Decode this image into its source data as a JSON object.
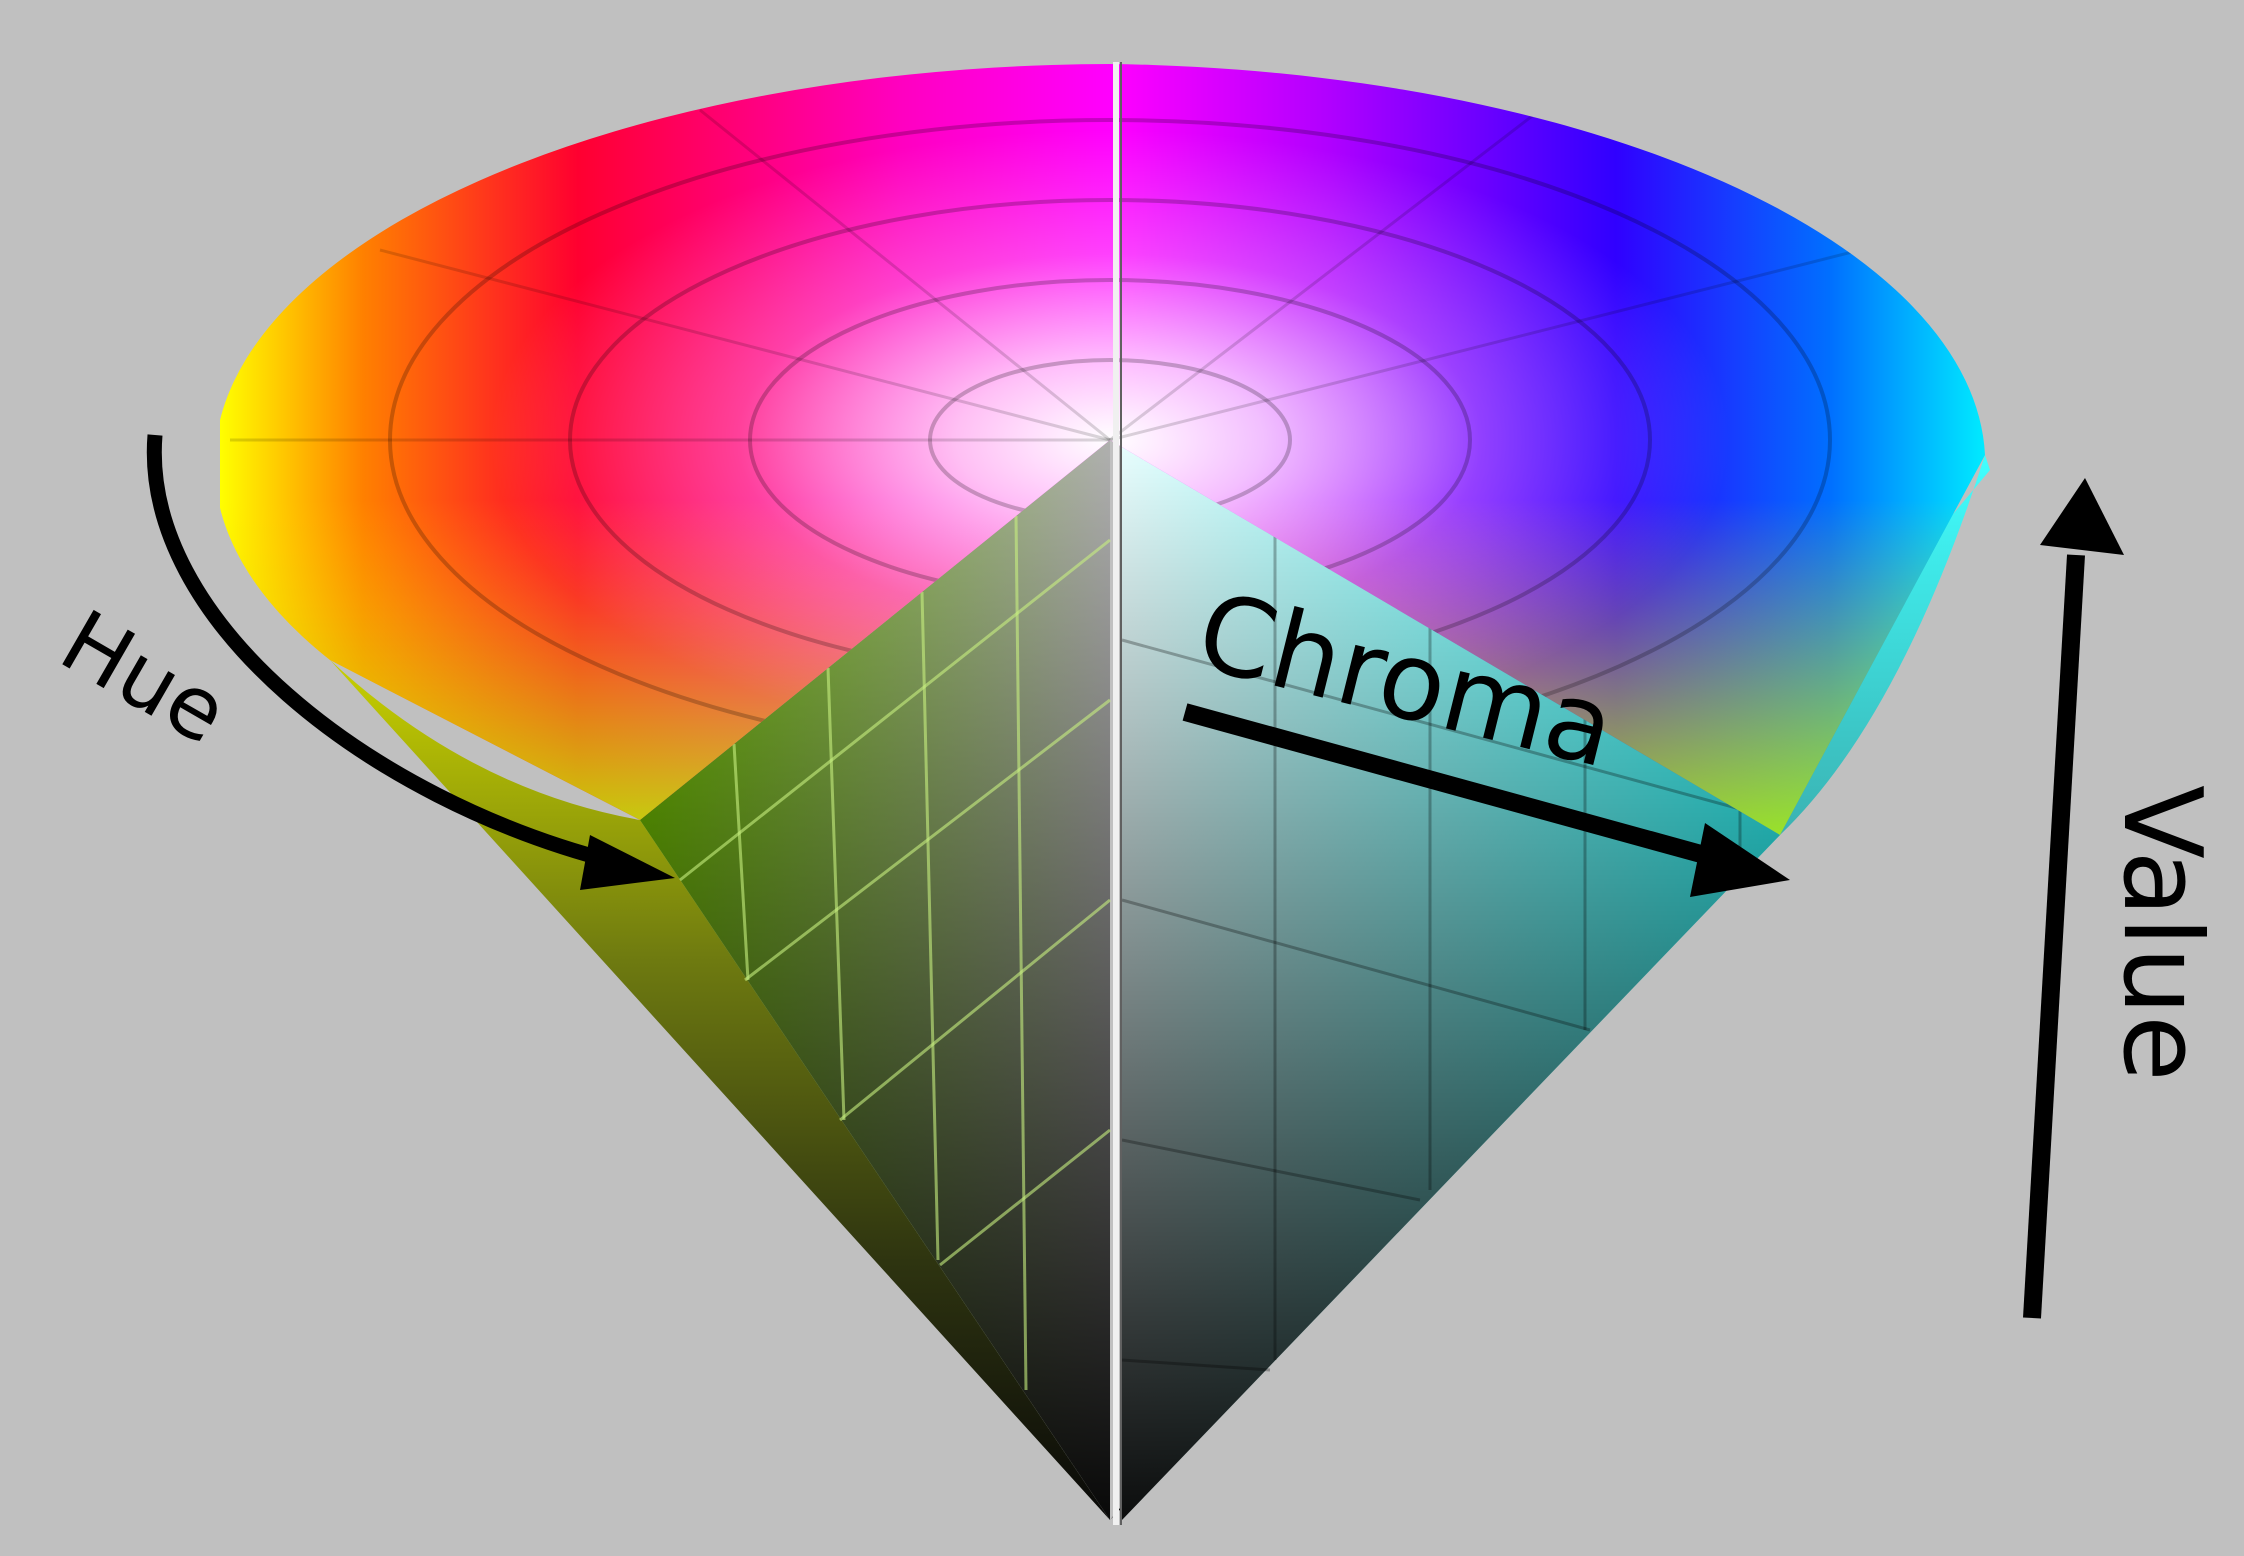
{
  "labels": {
    "hue": "Hue",
    "chroma": "Chroma",
    "value": "Value"
  },
  "colors": {
    "background": "#c0c0c0",
    "arrow": "#000000",
    "red": "#ff0000",
    "orange": "#ff8000",
    "yellow": "#ffff00",
    "green": "#80ff00",
    "cyan": "#00ffff",
    "blue": "#0000ff",
    "violet": "#8000ff",
    "magenta": "#ff00ff",
    "center": "#ffffff",
    "apex": "#000000"
  },
  "hsv_cone": {
    "top_face": "hue wheel (hue around the rim, chroma from center to rim)",
    "cutaway": "quarter wedge removed exposing the value axis"
  }
}
